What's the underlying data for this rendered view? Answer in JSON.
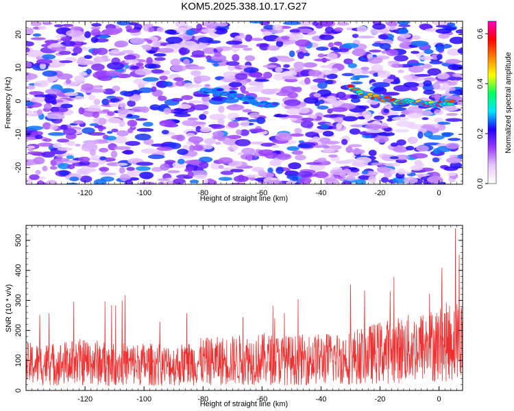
{
  "title": "KOM5.2025.338.10.17.G27",
  "chart_data": [
    {
      "type": "heatmap",
      "xlabel": "Height of straight line (km)",
      "ylabel": "Frequency (Hz)",
      "xlim": [
        -140,
        8
      ],
      "ylim": [
        -25,
        24
      ],
      "xticks": [
        -120,
        -100,
        -80,
        -60,
        -40,
        -20,
        0
      ],
      "yticks": [
        -20,
        -10,
        0,
        10,
        20
      ],
      "colorbar": {
        "label": "Normalized spectral amplitude",
        "range": [
          0.0,
          0.65
        ],
        "ticks": [
          "0.0",
          "0.2",
          "0.4",
          "0.6"
        ],
        "colormap": [
          "#ffffff",
          "#e8c8ff",
          "#9a3cff",
          "#2000ff",
          "#00e5ff",
          "#00ff60",
          "#ffff00",
          "#ff8000",
          "#ff0000",
          "#ff00c0"
        ]
      },
      "features": [
        {
          "description": "frequency line",
          "x": [
            -80,
            -75,
            -70,
            -65,
            -60,
            -55
          ],
          "y": [
            3,
            3,
            2,
            1,
            -1,
            -1
          ],
          "amplitude": 0.25
        },
        {
          "description": "frequency line",
          "x": [
            -30,
            -25,
            -20,
            -15,
            -10,
            -5,
            0,
            5
          ],
          "y": [
            4,
            2,
            1,
            0,
            0,
            -1,
            -1,
            0
          ],
          "amplitude": 0.6
        }
      ]
    },
    {
      "type": "line",
      "xlabel": "Height of straight line (km)",
      "ylabel": "SNR (10 * v/v)",
      "xlim": [
        -140,
        8
      ],
      "ylim": [
        0,
        550
      ],
      "xticks": [
        -120,
        -100,
        -80,
        -60,
        -40,
        -20,
        0
      ],
      "yticks": [
        0,
        100,
        200,
        300,
        400,
        500
      ],
      "series": [
        {
          "name": "SNR",
          "color": "#f03030",
          "x": [
            -140,
            -130,
            -120,
            -110,
            -100,
            -90,
            -80,
            -70,
            -60,
            -50,
            -40,
            -30,
            -20,
            -10,
            0,
            5
          ],
          "baseline": [
            100,
            100,
            110,
            100,
            100,
            95,
            110,
            115,
            120,
            115,
            120,
            125,
            145,
            160,
            175,
            190
          ],
          "envelope_max": [
            270,
            300,
            400,
            360,
            270,
            300,
            310,
            300,
            330,
            300,
            320,
            440,
            360,
            440,
            410,
            550
          ]
        }
      ]
    }
  ]
}
